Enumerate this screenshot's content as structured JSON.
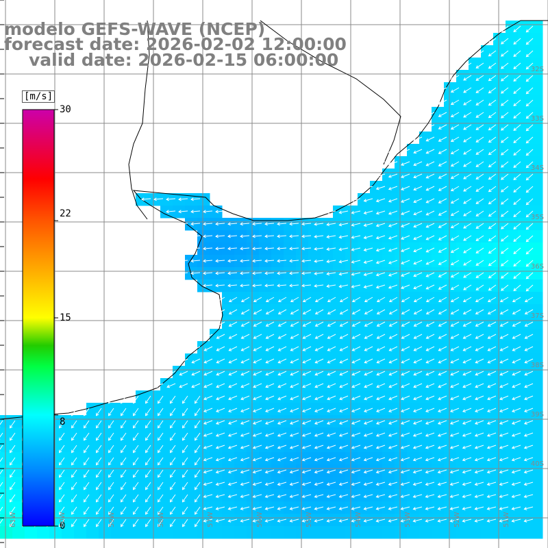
{
  "header": {
    "model": "modelo GEFS-WAVE (NCEP)",
    "forecast": "forecast date: 2026-02-02 12:00:00",
    "valid": "valid date: 2026-02-15 06:00:00"
  },
  "colorbar": {
    "unit": "[m/s]",
    "min": 0,
    "max": 30,
    "tick_labels": [
      "30",
      "22",
      "15",
      "8",
      "0"
    ],
    "tick_values": [
      30,
      22,
      15,
      8,
      0
    ],
    "stops": [
      {
        "v": 0,
        "c": "#0000ff"
      },
      {
        "v": 4,
        "c": "#0088ff"
      },
      {
        "v": 8,
        "c": "#00ffff"
      },
      {
        "v": 11.5,
        "c": "#00ff44"
      },
      {
        "v": 13,
        "c": "#22cc00"
      },
      {
        "v": 15,
        "c": "#ffff00"
      },
      {
        "v": 18.5,
        "c": "#ffaa00"
      },
      {
        "v": 22,
        "c": "#ff5500"
      },
      {
        "v": 25,
        "c": "#ff0000"
      },
      {
        "v": 30,
        "c": "#cc00aa"
      }
    ]
  },
  "lat_labels": [
    "32S",
    "33S",
    "34S",
    "35S",
    "36S",
    "37S",
    "38S",
    "39S",
    "40S"
  ],
  "lon_labels": [
    "61W",
    "60W",
    "59W",
    "58W",
    "57W",
    "56W",
    "55W",
    "54W",
    "53W",
    "52W",
    "51W"
  ],
  "land_color": "#ffffff",
  "grid_color": "#888888",
  "coast_color": "#000000",
  "arrow_color": "#ffffff"
}
